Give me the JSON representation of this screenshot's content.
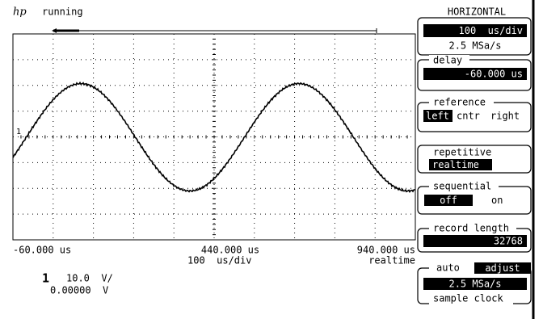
{
  "status": {
    "logo": "hp",
    "state": "running"
  },
  "marker": "1",
  "scale": {
    "left": "-60.000 us",
    "center": "440.000 us",
    "right": "940.000 us",
    "timebase": "100  us/div",
    "mode": "realtime"
  },
  "channel": {
    "number": "1",
    "scale": "10.0  V/",
    "offset": "0.00000  V"
  },
  "panel": {
    "title": "HORIZONTAL",
    "timebase": {
      "value": "100  us/div",
      "rate": "2.5 MSa/s"
    },
    "delay": {
      "label": "delay",
      "value": "-60.000 us"
    },
    "reference": {
      "label": "reference",
      "options": [
        "left",
        "cntr",
        "right"
      ]
    },
    "repetitive": {
      "label": "repetitive",
      "value": "realtime"
    },
    "sequential": {
      "label": "sequential",
      "options": [
        "off",
        "on"
      ]
    },
    "record_length": {
      "label": "record length",
      "value": "32768"
    },
    "sample_clock": {
      "options": [
        "auto",
        "adjust"
      ],
      "value": "2.5 MSa/s",
      "label": "sample clock"
    }
  }
}
